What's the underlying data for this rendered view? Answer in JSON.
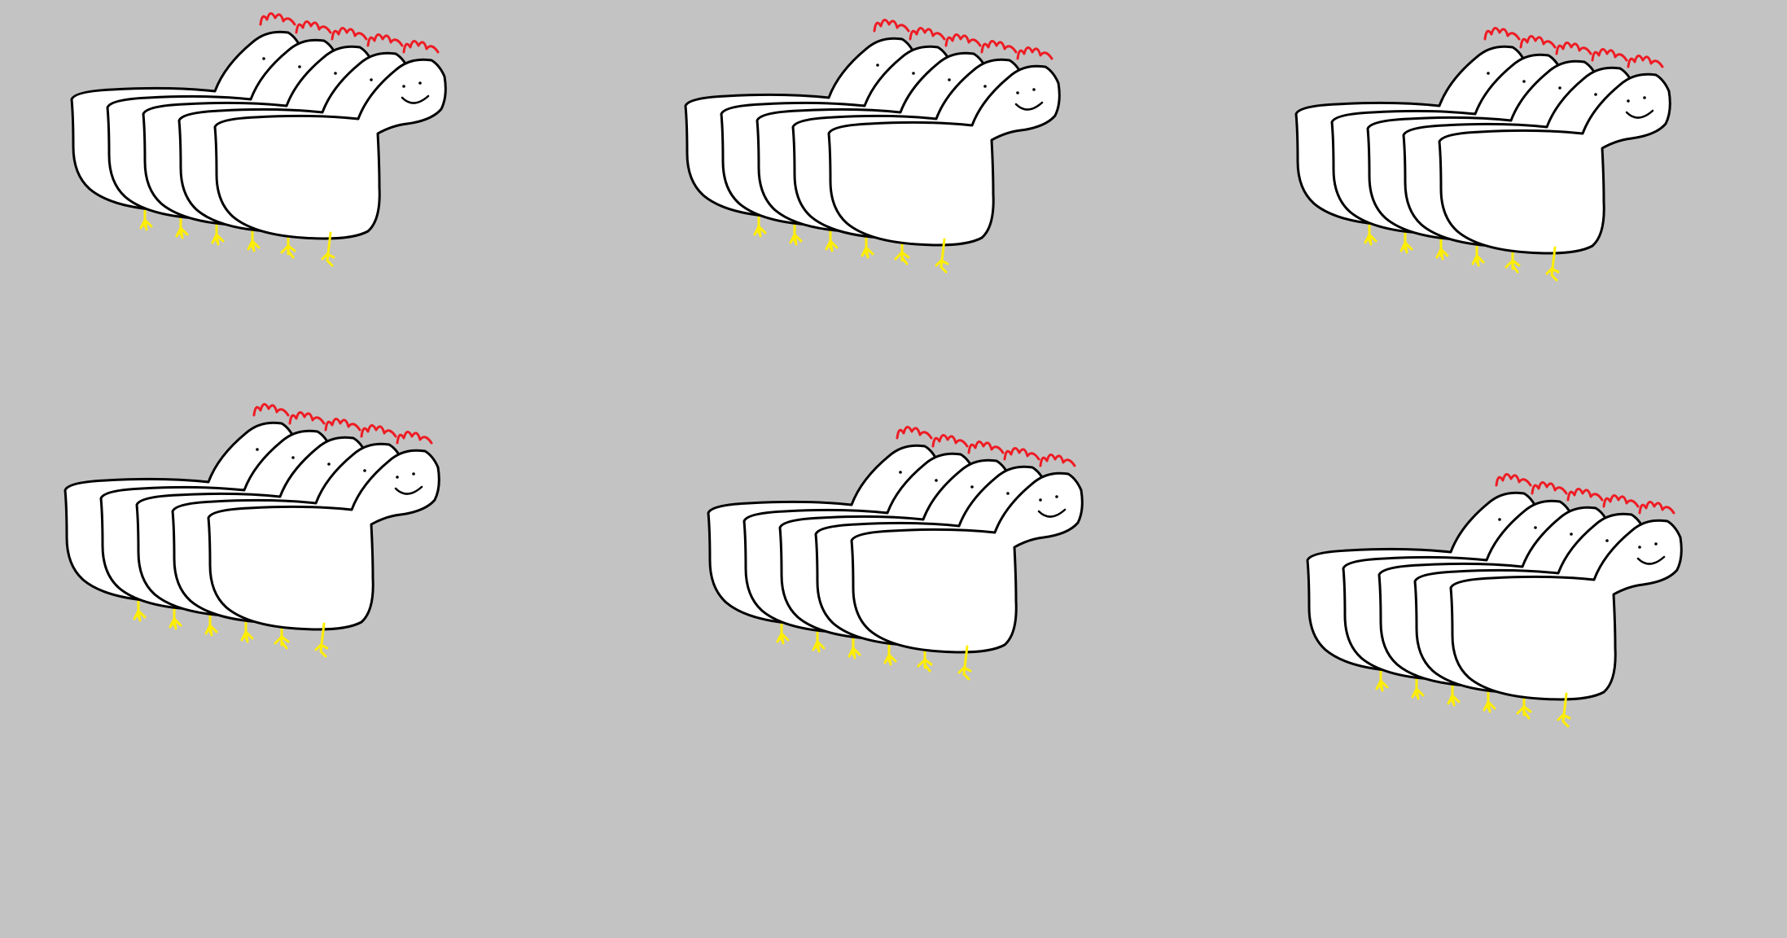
{
  "scene": {
    "background_color": "#c3c3c3",
    "colors": {
      "body_fill": "#ffffff",
      "outline": "#000000",
      "crest": "#ee1c24",
      "legs": "#ffee00"
    },
    "sprite": "chicken-doodle",
    "groups_count": 6,
    "chickens_per_group": 5
  }
}
